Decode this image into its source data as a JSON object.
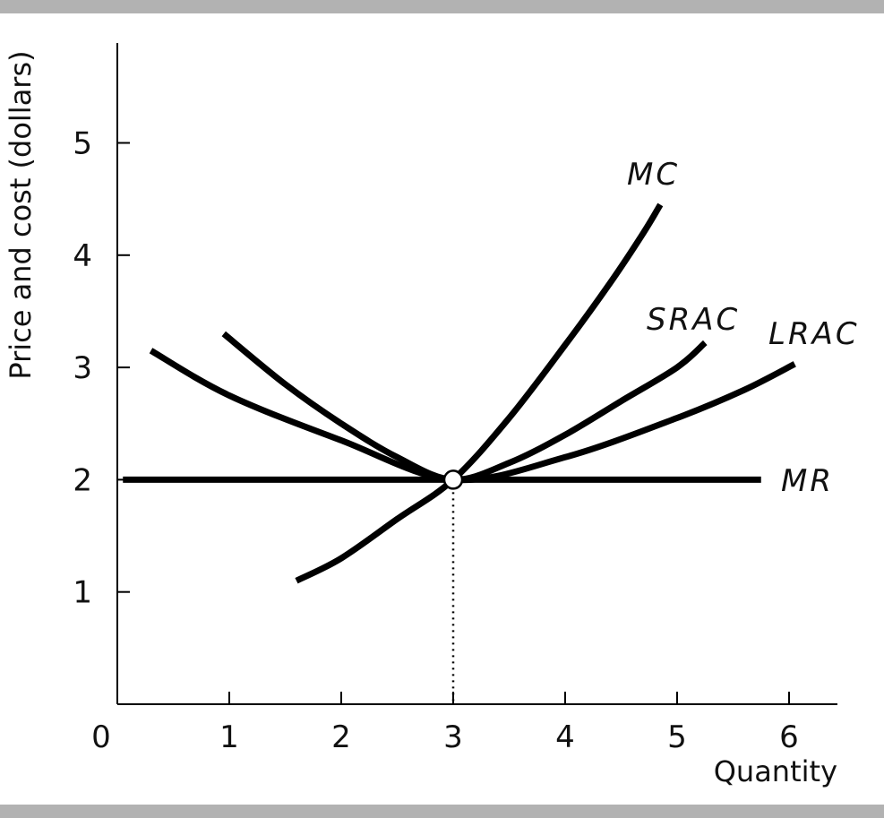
{
  "chart_data": {
    "type": "line",
    "title": "",
    "xlabel": "Quantity",
    "ylabel": "Price and cost (dollars)",
    "xlim": [
      0,
      6.4
    ],
    "ylim": [
      0,
      5.9
    ],
    "x_ticks": [
      "0",
      "1",
      "2",
      "3",
      "4",
      "5",
      "6"
    ],
    "y_ticks": [
      "1",
      "2",
      "3",
      "4",
      "5"
    ],
    "grid": false,
    "series": [
      {
        "name": "MC",
        "points": [
          [
            1.6,
            1.1
          ],
          [
            2.0,
            1.3
          ],
          [
            2.5,
            1.65
          ],
          [
            3.0,
            2.0
          ],
          [
            3.5,
            2.55
          ],
          [
            4.0,
            3.2
          ],
          [
            4.4,
            3.75
          ],
          [
            4.7,
            4.2
          ],
          [
            4.85,
            4.45
          ]
        ]
      },
      {
        "name": "SRAC",
        "points": [
          [
            0.95,
            3.3
          ],
          [
            1.5,
            2.85
          ],
          [
            2.0,
            2.5
          ],
          [
            2.5,
            2.2
          ],
          [
            3.0,
            2.0
          ],
          [
            3.5,
            2.15
          ],
          [
            4.0,
            2.4
          ],
          [
            4.5,
            2.7
          ],
          [
            5.0,
            3.0
          ],
          [
            5.25,
            3.22
          ]
        ]
      },
      {
        "name": "LRAC",
        "points": [
          [
            0.3,
            3.15
          ],
          [
            1.0,
            2.75
          ],
          [
            2.0,
            2.35
          ],
          [
            3.0,
            2.0
          ],
          [
            4.0,
            2.2
          ],
          [
            5.0,
            2.55
          ],
          [
            5.6,
            2.8
          ],
          [
            6.05,
            3.03
          ]
        ]
      },
      {
        "name": "MR",
        "points": [
          [
            0.05,
            2.0
          ],
          [
            5.75,
            2.0
          ]
        ]
      }
    ],
    "annotations": [
      {
        "type": "point",
        "x": 3,
        "y": 2
      },
      {
        "type": "dropline",
        "x": 3,
        "from_y": 2,
        "to_y": 0
      }
    ]
  }
}
